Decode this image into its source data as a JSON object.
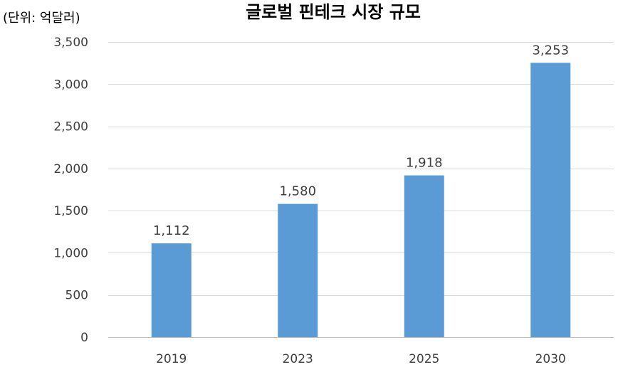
{
  "chart_data": {
    "type": "bar",
    "title": "글로벌 핀테크 시장 규모",
    "unit_label": "(단위: 억달러)",
    "categories": [
      "2019",
      "2023",
      "2025",
      "2030"
    ],
    "values": [
      1112,
      1580,
      1918,
      3253
    ],
    "data_labels": [
      "1,112",
      "1,580",
      "1,918",
      "3,253"
    ],
    "y_ticks": [
      0,
      500,
      1000,
      1500,
      2000,
      2500,
      3000,
      3500
    ],
    "y_tick_labels": [
      "0",
      "500",
      "1,000",
      "1,500",
      "2,000",
      "2,500",
      "3,000",
      "3,500"
    ],
    "ylim": [
      0,
      3500
    ],
    "grid": true,
    "legend": "none",
    "bar_color": "#5b9bd5"
  }
}
